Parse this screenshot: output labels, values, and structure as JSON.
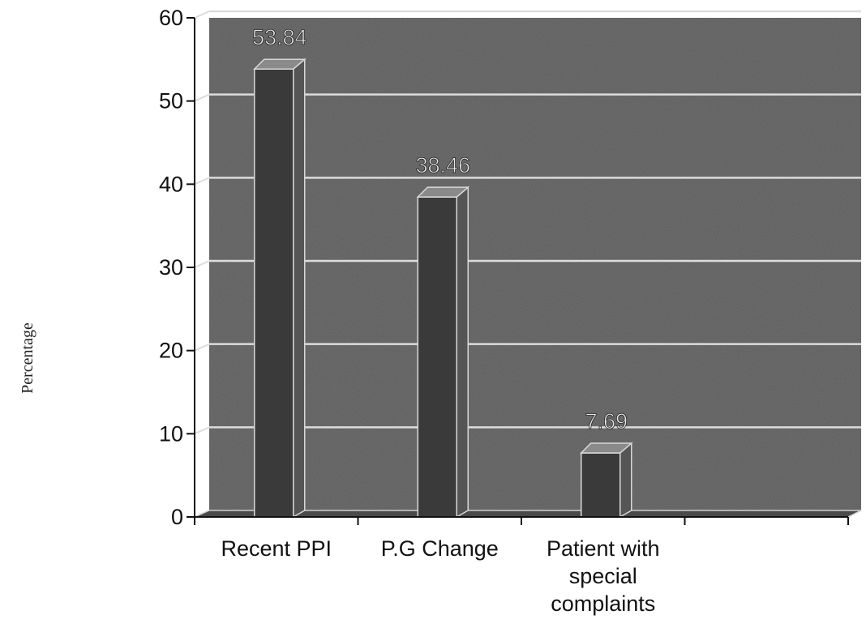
{
  "chart_data": {
    "type": "bar",
    "style": "3d-column",
    "categories": [
      "Recent PPI",
      "P.G Change",
      "Patient with special complaints"
    ],
    "category_lines": [
      [
        "Recent PPI"
      ],
      [
        "P.G Change"
      ],
      [
        "Patient with",
        "special",
        "complaints"
      ]
    ],
    "values": [
      53.84,
      38.46,
      7.69
    ],
    "value_labels": [
      "53.84",
      "38.46",
      "7.69"
    ],
    "ylabel": "Percentage",
    "xlabel": "",
    "title": "",
    "ylim": [
      0,
      60
    ],
    "yticks": [
      0,
      10,
      20,
      30,
      40,
      50,
      60
    ],
    "x_slots": 4,
    "grid": true,
    "legend": "none",
    "colors": {
      "plot_background": "#6e6e6e",
      "bar_front": "#3a3a3a",
      "bar_side": "#555555",
      "bar_top": "#8a8a8a",
      "gridline": "#dcdcdc"
    }
  }
}
